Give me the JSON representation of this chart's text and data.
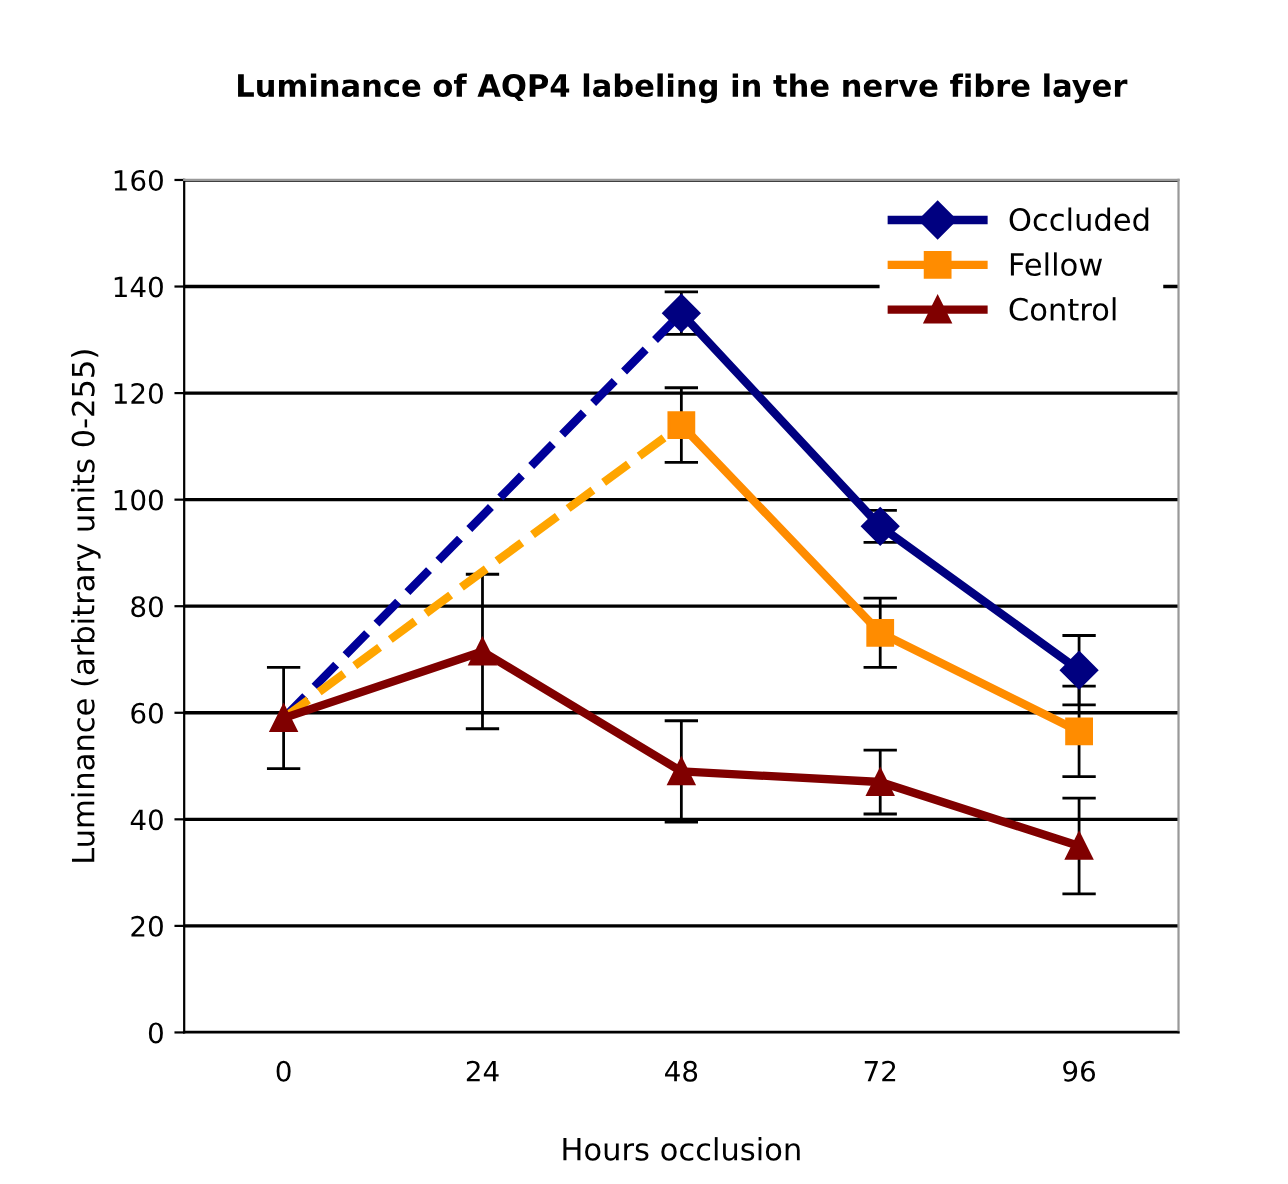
{
  "chart_data": {
    "type": "line",
    "title": "Luminance of AQP4 labeling in the nerve fibre layer",
    "xlabel": "Hours occlusion",
    "ylabel": "Luminance (arbitrary units 0-255)",
    "categories": [
      "0",
      "24",
      "48",
      "72",
      "96"
    ],
    "ylim": [
      0,
      160
    ],
    "yticks": [
      0,
      20,
      40,
      60,
      80,
      100,
      120,
      140,
      160
    ],
    "grid": "y",
    "legend": "top right",
    "series": [
      {
        "color": "#000099",
        "values": [
          59,
          null,
          135,
          null,
          null
        ],
        "line_style": "dashed",
        "marker": "none"
      },
      {
        "color": "#ffa500",
        "values": [
          59,
          null,
          114,
          null,
          null
        ],
        "line_style": "dashed",
        "marker": "none"
      },
      {
        "name": "Occluded",
        "color": "#000080",
        "values": [
          null,
          null,
          135,
          95,
          68
        ],
        "errors": [
          null,
          null,
          4,
          3,
          6.5
        ],
        "marker": "diamond",
        "line_style": "solid"
      },
      {
        "name": "Fellow",
        "color": "#ff8c00",
        "values": [
          null,
          null,
          114,
          75,
          56.5
        ],
        "errors": [
          null,
          null,
          7,
          6.5,
          8.5
        ],
        "marker": "square",
        "line_style": "solid"
      },
      {
        "name": "Control",
        "color": "#800000",
        "values": [
          59,
          71.5,
          49,
          47,
          35
        ],
        "errors": [
          9.5,
          14.5,
          9.5,
          6,
          9
        ],
        "marker": "triangle",
        "line_style": "solid"
      }
    ]
  }
}
